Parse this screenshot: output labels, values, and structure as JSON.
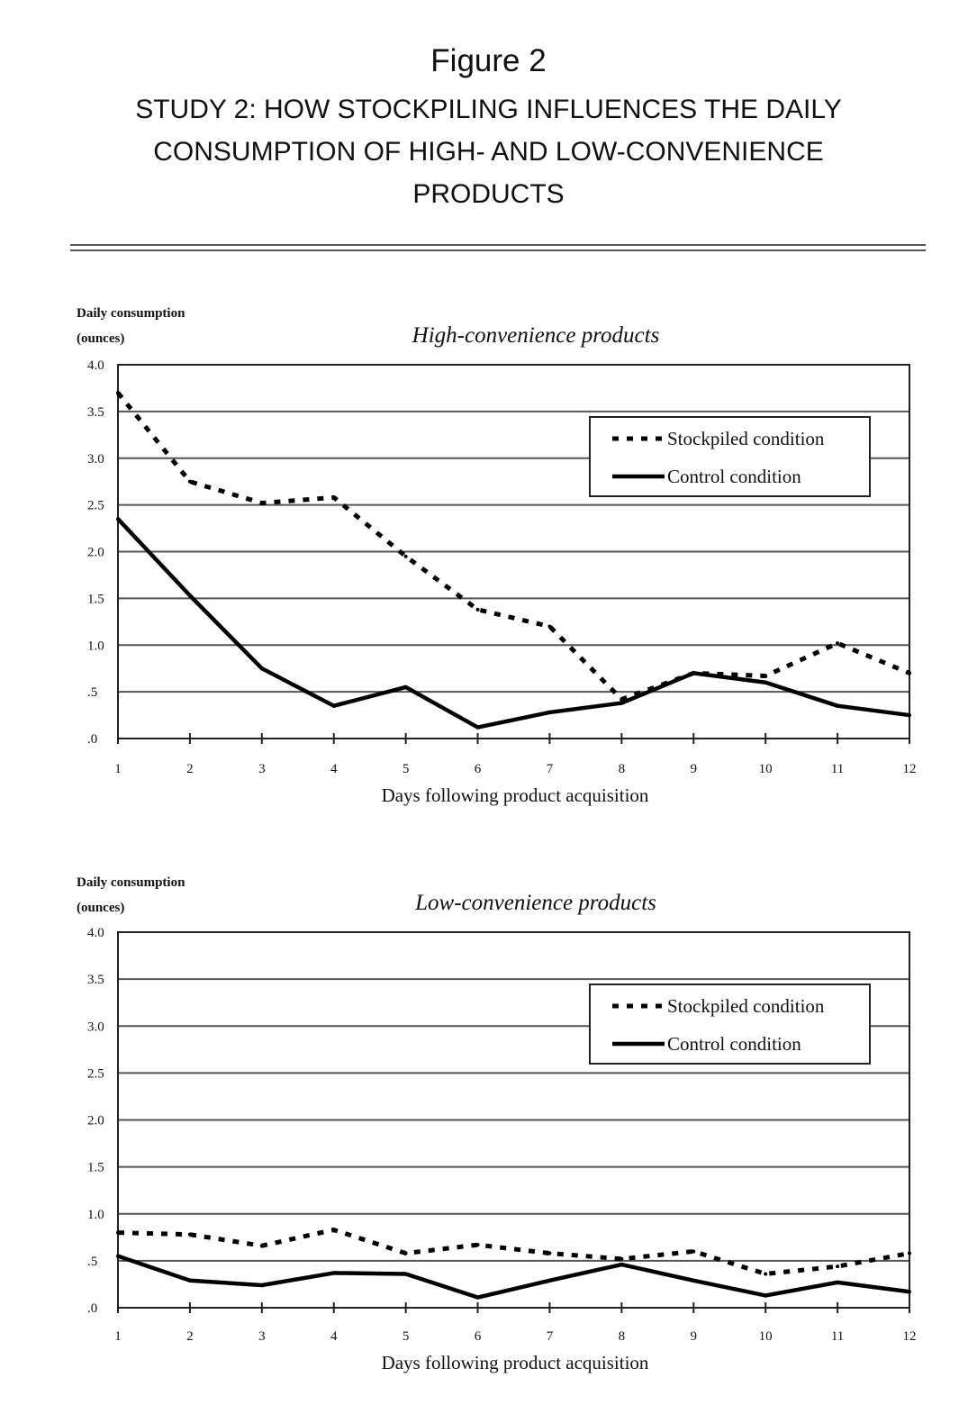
{
  "figure": {
    "label": "Figure 2",
    "title": "STUDY 2: HOW STOCKPILING INFLUENCES THE DAILY CONSUMPTION OF HIGH- AND LOW-CONVENIENCE PRODUCTS"
  },
  "chart_data": [
    {
      "type": "line",
      "title": "High-convenience products",
      "ylabel_line1": "Daily consumption",
      "ylabel_line2": "(ounces)",
      "xlabel": "Days following product acquisition",
      "x": [
        1,
        2,
        3,
        4,
        5,
        6,
        7,
        8,
        9,
        10,
        11,
        12
      ],
      "xticks": [
        "1",
        "2",
        "3",
        "4",
        "5",
        "6",
        "7",
        "8",
        "9",
        "10",
        "11",
        "12"
      ],
      "yticks": [
        ".0",
        ".5",
        "1.0",
        "1.5",
        "2.0",
        "2.5",
        "3.0",
        "3.5",
        "4.0"
      ],
      "ylim": [
        0,
        4
      ],
      "grid": true,
      "legend_position": "top-right",
      "series": [
        {
          "name": "Stockpiled condition",
          "style": "dotted",
          "values": [
            3.7,
            2.75,
            2.52,
            2.58,
            1.95,
            1.38,
            1.2,
            0.42,
            0.7,
            0.67,
            1.02,
            0.7
          ]
        },
        {
          "name": "Control condition",
          "style": "solid",
          "values": [
            2.35,
            1.53,
            0.75,
            0.35,
            0.55,
            0.12,
            0.28,
            0.38,
            0.7,
            0.6,
            0.35,
            0.25
          ]
        }
      ]
    },
    {
      "type": "line",
      "title": "Low-convenience products",
      "ylabel_line1": "Daily consumption",
      "ylabel_line2": "(ounces)",
      "xlabel": "Days following product acquisition",
      "x": [
        1,
        2,
        3,
        4,
        5,
        6,
        7,
        8,
        9,
        10,
        11,
        12
      ],
      "xticks": [
        "1",
        "2",
        "3",
        "4",
        "5",
        "6",
        "7",
        "8",
        "9",
        "10",
        "11",
        "12"
      ],
      "yticks": [
        ".0",
        ".5",
        "1.0",
        "1.5",
        "2.0",
        "2.5",
        "3.0",
        "3.5",
        "4.0"
      ],
      "ylim": [
        0,
        4
      ],
      "grid": true,
      "legend_position": "top-right",
      "series": [
        {
          "name": "Stockpiled condition",
          "style": "dotted",
          "values": [
            0.8,
            0.78,
            0.66,
            0.83,
            0.58,
            0.67,
            0.58,
            0.52,
            0.6,
            0.36,
            0.44,
            0.58
          ]
        },
        {
          "name": "Control condition",
          "style": "solid",
          "values": [
            0.55,
            0.29,
            0.24,
            0.37,
            0.36,
            0.11,
            0.29,
            0.46,
            0.29,
            0.13,
            0.27,
            0.17
          ]
        }
      ]
    }
  ]
}
